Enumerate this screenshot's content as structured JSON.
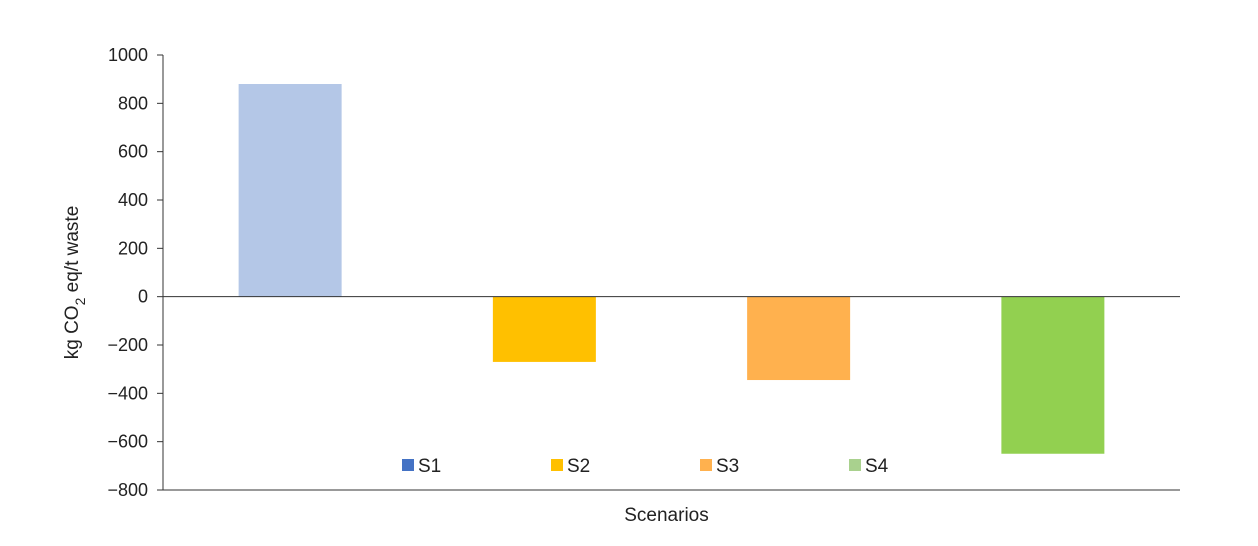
{
  "chart_data": {
    "type": "bar",
    "categories": [
      "S1",
      "S2",
      "S3",
      "S4"
    ],
    "values": [
      880,
      -270,
      -345,
      -650
    ],
    "colors": [
      "#b4c7e7",
      "#ffc000",
      "#ffb14e",
      "#92d050"
    ],
    "legend_colors": [
      "#4472c4",
      "#ffc000",
      "#ffb14e",
      "#a9d18e"
    ],
    "legend": [
      "S1",
      "S2",
      "S3",
      "S4"
    ],
    "legend_position": "bottom-inside",
    "ylabel": {
      "prefix": "kg CO",
      "sub": "2",
      "suffix": " eq/t waste"
    },
    "xlabel": "Scenarios",
    "ylim": [
      -800,
      1000
    ],
    "yticks": [
      1000,
      800,
      600,
      400,
      200,
      0,
      -200,
      -400,
      -600,
      -800
    ],
    "ytick_labels": [
      "1000",
      "800",
      "600",
      "400",
      "200",
      "0",
      "−200",
      "−400",
      "−600",
      "−800"
    ],
    "grid": false
  }
}
